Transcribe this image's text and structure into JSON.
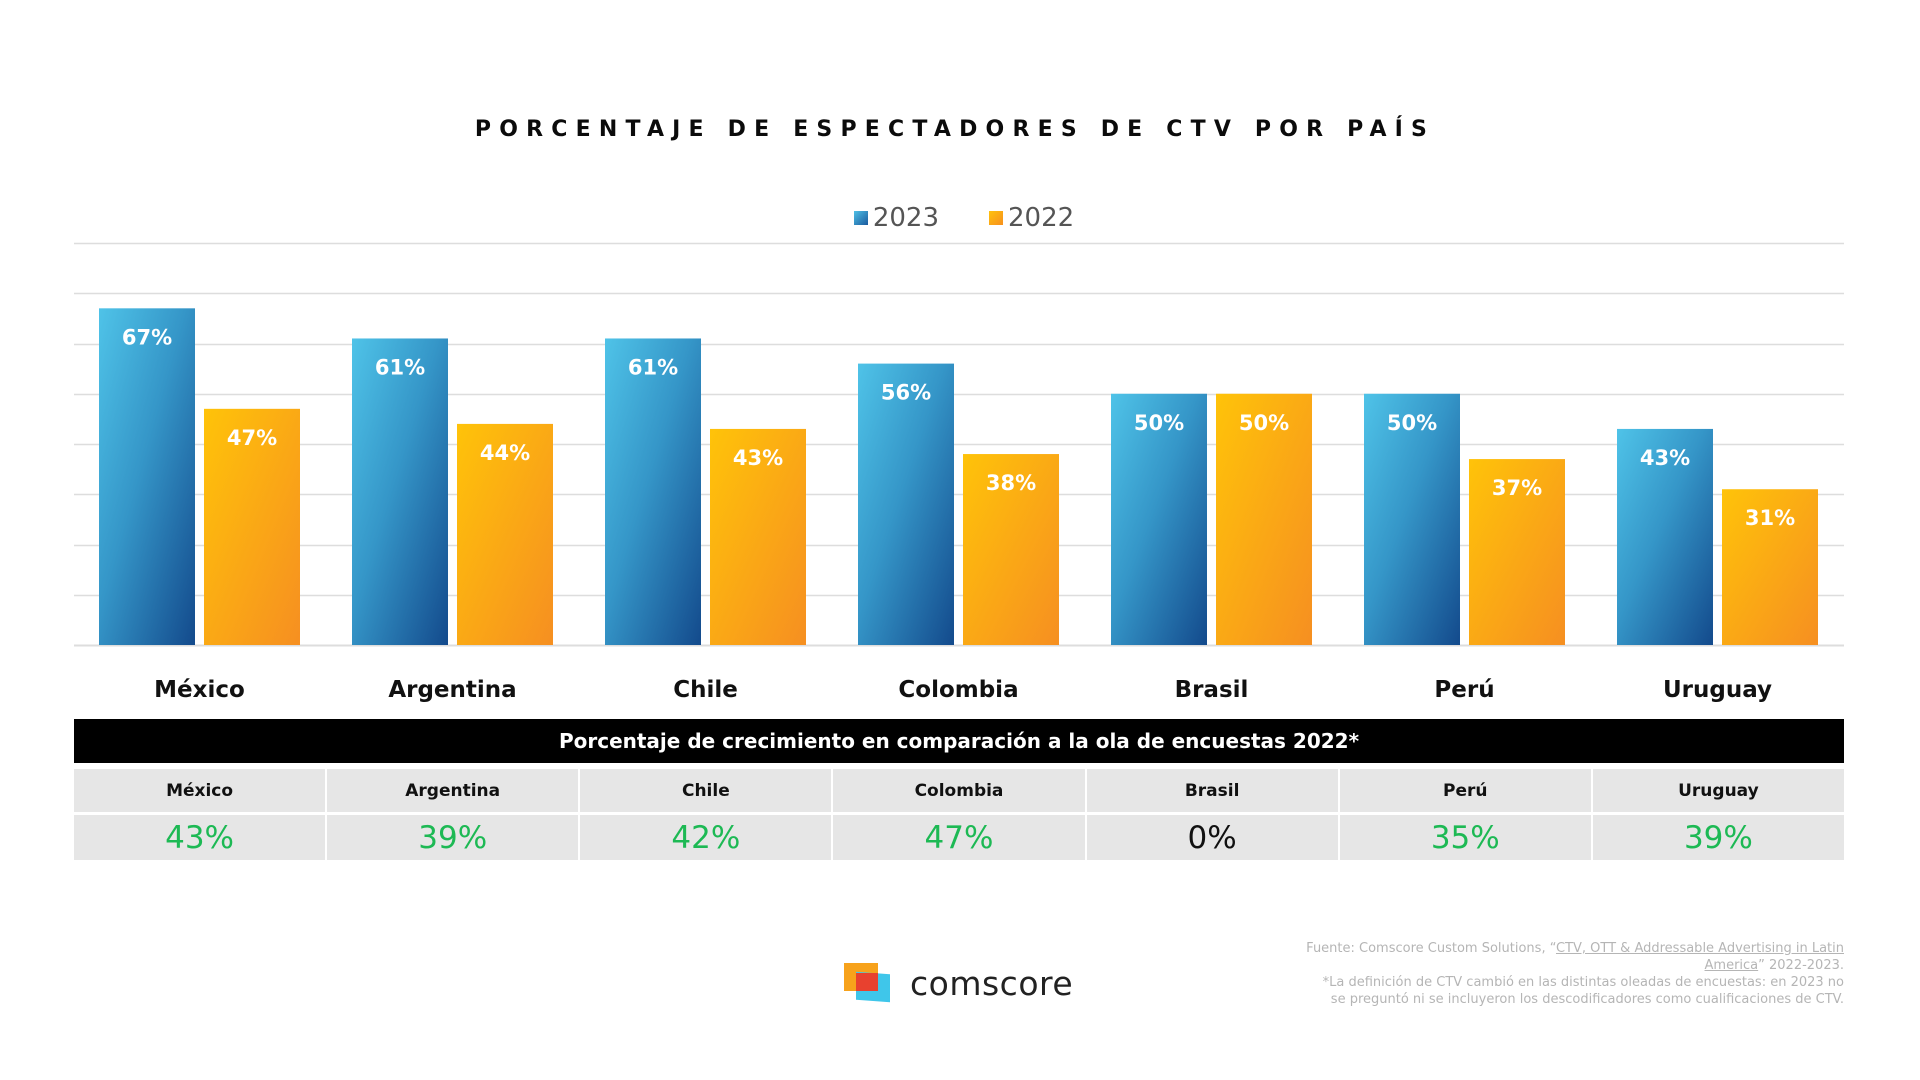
{
  "title": "PORCENTAJE DE ESPECTADORES DE CTV POR PAÍS",
  "legend": [
    {
      "label": "2023",
      "series": "2023"
    },
    {
      "label": "2022",
      "series": "2022"
    }
  ],
  "colors": {
    "series_2023_light": "#4fc0e6",
    "series_2023_dark": "#154a8c",
    "series_2022_light": "#ffc20e",
    "series_2022_dark": "#f7901e",
    "growth_positive": "#1db954",
    "growth_zero": "#111111",
    "gridline": "#dddddd"
  },
  "chart_data": {
    "type": "bar",
    "title": "PORCENTAJE DE ESPECTADORES DE CTV POR PAÍS",
    "categories": [
      "México",
      "Argentina",
      "Chile",
      "Colombia",
      "Brasil",
      "Perú",
      "Uruguay"
    ],
    "series": [
      {
        "name": "2023",
        "values": [
          67,
          61,
          61,
          56,
          50,
          50,
          43
        ],
        "labels": [
          "67%",
          "61%",
          "61%",
          "56%",
          "50%",
          "50%",
          "43%"
        ]
      },
      {
        "name": "2022",
        "values": [
          47,
          44,
          43,
          38,
          50,
          37,
          31
        ],
        "labels": [
          "47%",
          "44%",
          "43%",
          "38%",
          "50%",
          "37%",
          "31%"
        ]
      }
    ],
    "xlabel": "",
    "ylabel": "",
    "ylim": [
      0,
      80
    ],
    "y_gridline_step": 10,
    "grid": true,
    "y_tick_labels_shown": false,
    "legend_position": "top-center"
  },
  "growth_table": {
    "title": "Porcentaje de crecimiento en comparación a la ola de encuestas 2022*",
    "columns": [
      {
        "country": "México",
        "growth": "43%",
        "positive": true
      },
      {
        "country": "Argentina",
        "growth": "39%",
        "positive": true
      },
      {
        "country": "Chile",
        "growth": "42%",
        "positive": true
      },
      {
        "country": "Colombia",
        "growth": "47%",
        "positive": true
      },
      {
        "country": "Brasil",
        "growth": "0%",
        "positive": false
      },
      {
        "country": "Perú",
        "growth": "35%",
        "positive": true
      },
      {
        "country": "Uruguay",
        "growth": "39%",
        "positive": true
      }
    ]
  },
  "footer": {
    "logo_text": "comscore",
    "source_prefix": "Fuente: Comscore Custom Solutions, “",
    "source_link": "CTV, OTT & Addressable Advertising in Latin America",
    "source_suffix": "” 2022-2023.",
    "note": "*La definición de CTV cambió en las distintas oleadas de encuestas: en 2023 no se preguntó ni se incluyeron los descodificadores como cualificaciones de CTV."
  }
}
